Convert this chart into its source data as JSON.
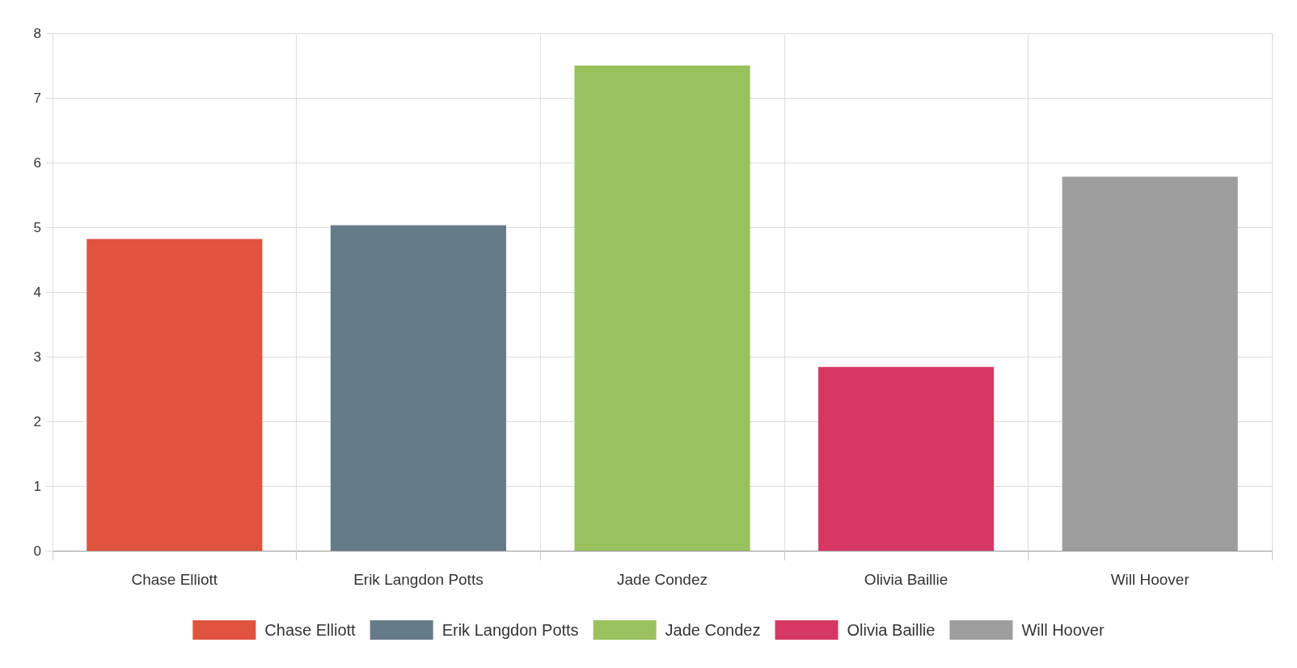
{
  "chart_data": {
    "type": "bar",
    "categories": [
      "Chase Elliott",
      "Erik Langdon Potts",
      "Jade Condez",
      "Olivia Baillie",
      "Will Hoover"
    ],
    "series": [
      {
        "name": "Chase Elliott",
        "color": "#e0533f",
        "values": [
          4.82,
          null,
          null,
          null,
          null
        ]
      },
      {
        "name": "Erik Langdon Potts",
        "color": "#667b88",
        "values": [
          null,
          5.03,
          null,
          null,
          null
        ]
      },
      {
        "name": "Jade Condez",
        "color": "#99c15e",
        "values": [
          null,
          null,
          7.5,
          null,
          null
        ]
      },
      {
        "name": "Olivia Baillie",
        "color": "#d63864",
        "values": [
          null,
          null,
          null,
          2.84,
          null
        ]
      },
      {
        "name": "Will Hoover",
        "color": "#9e9e9e",
        "values": [
          null,
          null,
          null,
          null,
          5.78
        ]
      }
    ],
    "ylim": [
      0,
      8
    ],
    "yticks": [
      0,
      1,
      2,
      3,
      4,
      5,
      6,
      7,
      8
    ],
    "grid": true,
    "legend": "bottom"
  }
}
